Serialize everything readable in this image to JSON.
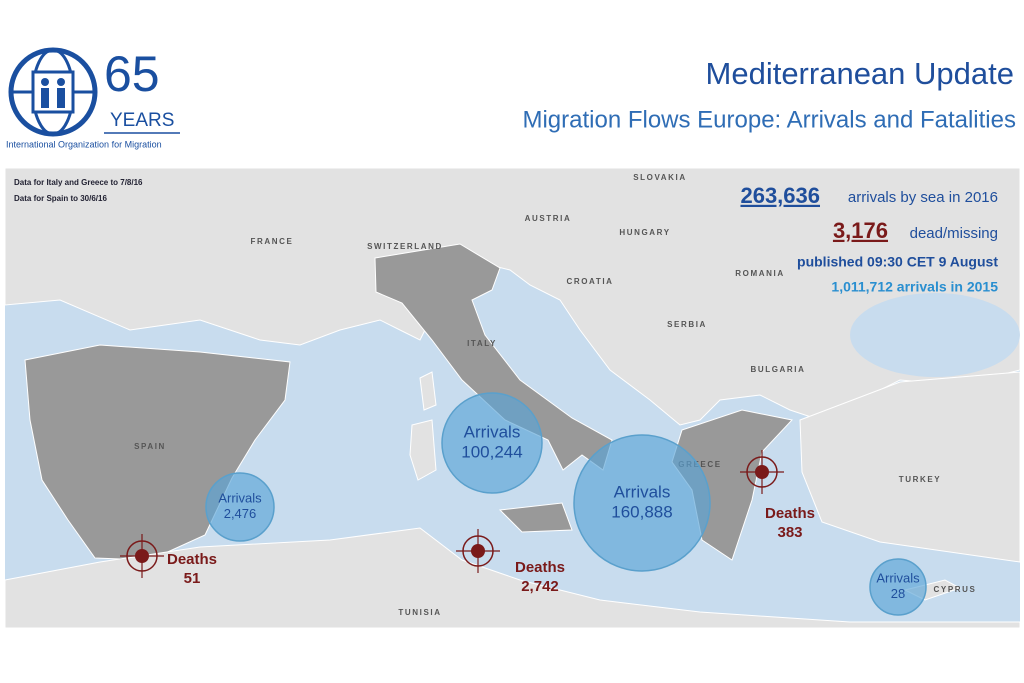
{
  "header": {
    "logo": {
      "number": "65",
      "years": "YEARS",
      "organization": "International Organization for Migration"
    },
    "title": "Mediterranean Update",
    "subtitle": "Migration Flows Europe: Arrivals and Fatalities"
  },
  "notes": [
    "Data for Italy and Greece to 7/8/16",
    "Data for Spain to 30/6/16"
  ],
  "stats": {
    "arrivals_2016": {
      "value": "263,636",
      "label": "arrivals by sea in 2016"
    },
    "dead_missing": {
      "value": "3,176",
      "label": "dead/missing"
    },
    "published": "published 09:30 CET 9 August",
    "arrivals_2015": "1,011,712 arrivals in 2015"
  },
  "countries": [
    "SLOVAKIA",
    "AUSTRIA",
    "HUNGARY",
    "FRANCE",
    "SWITZERLAND",
    "ROMANIA",
    "CROATIA",
    "SERBIA",
    "ITALY",
    "BULGARIA",
    "SPAIN",
    "GREECE",
    "TURKEY",
    "TUNISIA",
    "CYPRUS"
  ],
  "arrivals": [
    {
      "label": "Arrivals",
      "value": "100,244"
    },
    {
      "label": "Arrivals",
      "value": "160,888"
    },
    {
      "label": "Arrivals",
      "value": "2,476"
    },
    {
      "label": "Arrivals",
      "value": "28"
    }
  ],
  "deaths": [
    {
      "label": "Deaths",
      "value": "51"
    },
    {
      "label": "Deaths",
      "value": "2,742"
    },
    {
      "label": "Deaths",
      "value": "383"
    }
  ]
}
